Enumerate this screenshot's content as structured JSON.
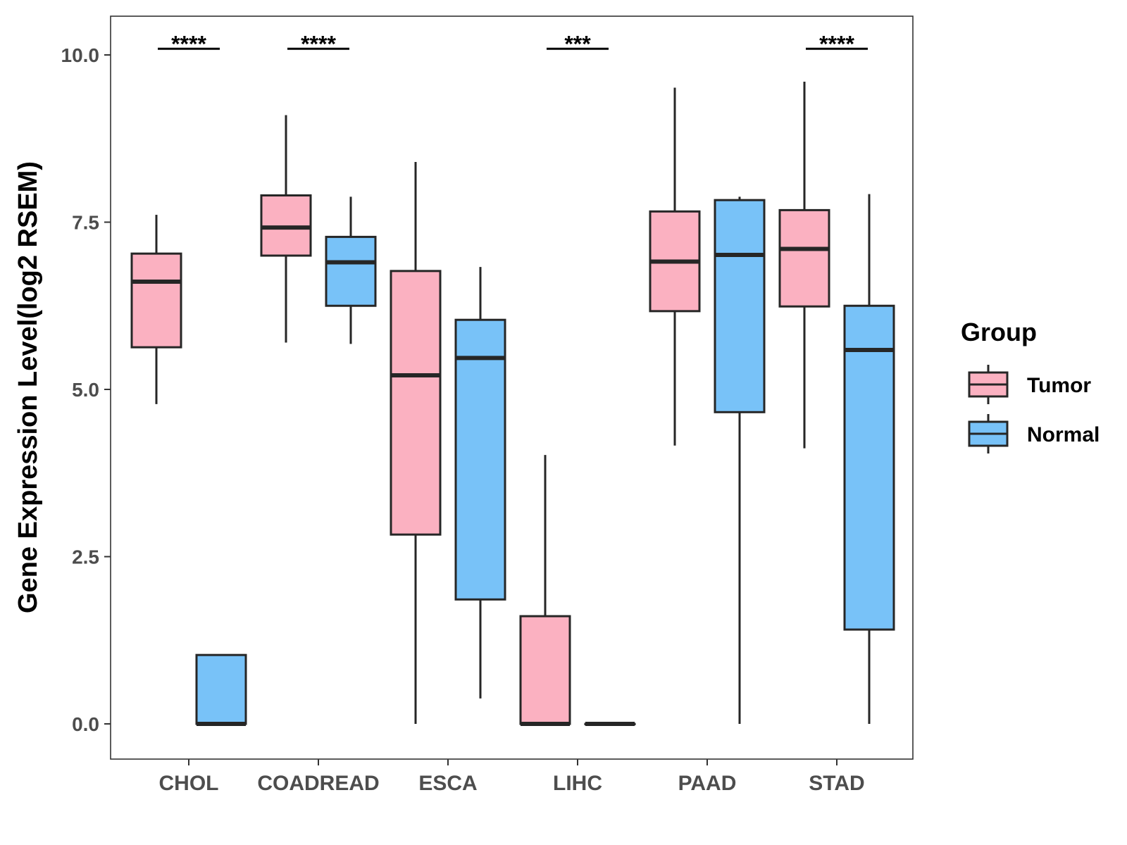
{
  "chart_data": {
    "type": "box",
    "ylabel": "Gene Expression Level(log2 RSEM)",
    "xlabel": "",
    "ylim": [
      -0.2,
      10.6
    ],
    "yticks": [
      0.0,
      2.5,
      5.0,
      7.5,
      10.0
    ],
    "ytick_labels": [
      "0.0",
      "2.5",
      "5.0",
      "7.5",
      "10.0"
    ],
    "categories": [
      "CHOL",
      "COADREAD",
      "ESCA",
      "LIHC",
      "PAAD",
      "STAD"
    ],
    "legend": {
      "title": "Group",
      "position": "right",
      "entries": [
        {
          "name": "Tumor",
          "color": "#fbb1c1"
        },
        {
          "name": "Normal",
          "color": "#78c2f8"
        }
      ]
    },
    "series": [
      {
        "name": "Tumor",
        "color": "#fbb1c1",
        "boxes": [
          {
            "category": "CHOL",
            "min": 4.78,
            "q1": 5.63,
            "median": 6.61,
            "q3": 7.03,
            "max": 7.61
          },
          {
            "category": "COADREAD",
            "min": 5.7,
            "q1": 7.0,
            "median": 7.42,
            "q3": 7.9,
            "max": 9.1
          },
          {
            "category": "ESCA",
            "min": 0.0,
            "q1": 2.83,
            "median": 5.21,
            "q3": 6.77,
            "max": 8.4
          },
          {
            "category": "LIHC",
            "min": 0.0,
            "q1": 0.0,
            "median": 0.0,
            "q3": 1.61,
            "max": 4.02
          },
          {
            "category": "PAAD",
            "min": 4.16,
            "q1": 6.17,
            "median": 6.91,
            "q3": 7.66,
            "max": 9.51
          },
          {
            "category": "STAD",
            "min": 4.12,
            "q1": 6.24,
            "median": 7.1,
            "q3": 7.68,
            "max": 9.6
          }
        ]
      },
      {
        "name": "Normal",
        "color": "#78c2f8",
        "boxes": [
          {
            "category": "CHOL",
            "min": 0.0,
            "q1": 0.0,
            "median": 0.0,
            "q3": 1.03,
            "max": 1.03
          },
          {
            "category": "COADREAD",
            "min": 5.68,
            "q1": 6.25,
            "median": 6.9,
            "q3": 7.28,
            "max": 7.88
          },
          {
            "category": "ESCA",
            "min": 0.38,
            "q1": 1.86,
            "median": 5.47,
            "q3": 6.04,
            "max": 6.83
          },
          {
            "category": "LIHC",
            "min": 0.0,
            "q1": 0.0,
            "median": 0.0,
            "q3": 0.0,
            "max": 0.0
          },
          {
            "category": "PAAD",
            "min": 0.0,
            "q1": 4.66,
            "median": 7.01,
            "q3": 7.83,
            "max": 7.88
          },
          {
            "category": "STAD",
            "min": 0.0,
            "q1": 1.41,
            "median": 5.59,
            "q3": 6.25,
            "max": 7.92
          }
        ]
      }
    ],
    "significance": [
      {
        "category": "CHOL",
        "label": "****",
        "y": 10.05
      },
      {
        "category": "COADREAD",
        "label": "****",
        "y": 10.05
      },
      {
        "category": "LIHC",
        "label": "***",
        "y": 10.05
      },
      {
        "category": "STAD",
        "label": "****",
        "y": 10.05
      }
    ]
  }
}
